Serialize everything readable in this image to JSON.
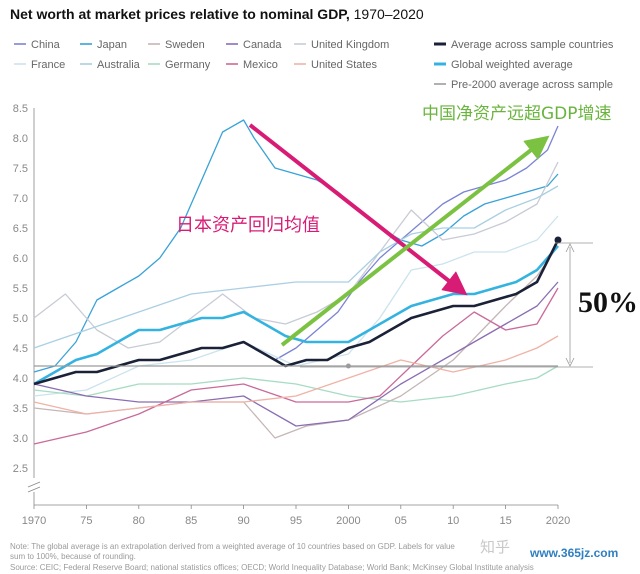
{
  "title": {
    "main": "Net worth at market prices relative to nominal GDP,",
    "years": "1970–2020"
  },
  "annotations": {
    "japan_reversion": "日本资产回归均值",
    "china_growth": "中国净资产远超GDP增速",
    "increase": "50%"
  },
  "notes": {
    "note_line1": "Note: The global average is an extrapolation derived from a weighted average of 10 countries based on GDP. Labels for value",
    "note_line2": "sum to 100%, because of rounding.",
    "source": "Source: CEIC; Federal Reserve Board; national statistics offices; OECD; World Inequality Database; World Bank; McKinsey Global Institute analysis"
  },
  "watermark": {
    "zhihu": "知乎",
    "site": "www.365jz.com"
  },
  "colors": {
    "china": "#7b83d4",
    "japan": "#39a2d8",
    "sweden": "#c6b6b6",
    "canada": "#8a6db2",
    "uk": "#c7cbd5",
    "france": "#cbe3ee",
    "australia": "#aacfe3",
    "germany": "#a6dcc3",
    "mexico": "#c96a9a",
    "us": "#f0b2a6",
    "average": "#1b2238",
    "global": "#34b3e0",
    "pre2000": "#9c9c9c",
    "arrow_pink": "#d81b75",
    "arrow_green": "#7cc242",
    "text_pink": "#d81b75",
    "text_green": "#6ab43e"
  },
  "chart_data": {
    "type": "line",
    "x_range": [
      1970,
      2020
    ],
    "ylim": [
      2.5,
      8.5
    ],
    "y_ticks": [
      "2.5",
      "3.0",
      "3.5",
      "4.0",
      "4.5",
      "5.0",
      "5.5",
      "6.0",
      "6.5",
      "7.0",
      "7.5",
      "8.0",
      "8.5"
    ],
    "y_tick_values": [
      2.5,
      3.0,
      3.5,
      4.0,
      4.5,
      5.0,
      5.5,
      6.0,
      6.5,
      7.0,
      7.5,
      8.0,
      8.5
    ],
    "x_tick_labels": [
      "1970",
      "75",
      "80",
      "85",
      "90",
      "95",
      "2000",
      "05",
      "10",
      "15",
      "2020"
    ],
    "x_tick_values": [
      1970,
      1975,
      1980,
      1985,
      1990,
      1995,
      2000,
      2005,
      2010,
      2015,
      2020
    ],
    "grid": false,
    "legend_position": "top",
    "legend": [
      {
        "key": "china",
        "label": "China"
      },
      {
        "key": "japan",
        "label": "Japan"
      },
      {
        "key": "sweden",
        "label": "Sweden"
      },
      {
        "key": "canada",
        "label": "Canada"
      },
      {
        "key": "uk",
        "label": "United Kingdom"
      },
      {
        "key": "average",
        "label": "Average across sample countries"
      },
      {
        "key": "france",
        "label": "France"
      },
      {
        "key": "australia",
        "label": "Australia"
      },
      {
        "key": "germany",
        "label": "Germany"
      },
      {
        "key": "mexico",
        "label": "Mexico"
      },
      {
        "key": "us",
        "label": "United States"
      },
      {
        "key": "global",
        "label": "Global weighted average"
      },
      {
        "key": "pre2000",
        "label": "Pre-2000 average across sample"
      }
    ],
    "series": [
      {
        "key": "china",
        "name": "China",
        "x": [
          1993,
          1995,
          1997,
          1999,
          2001,
          2003,
          2005,
          2007,
          2009,
          2011,
          2013,
          2015,
          2017,
          2019,
          2020
        ],
        "y": [
          4.3,
          4.5,
          4.8,
          5.1,
          5.6,
          6.0,
          6.3,
          6.6,
          6.9,
          7.1,
          7.2,
          7.3,
          7.5,
          7.8,
          8.2
        ]
      },
      {
        "key": "japan",
        "name": "Japan",
        "x": [
          1970,
          1972,
          1974,
          1976,
          1978,
          1980,
          1982,
          1984,
          1986,
          1988,
          1990,
          1991,
          1993,
          1995,
          1997,
          1999,
          2001,
          2003,
          2005,
          2007,
          2009,
          2011,
          2013,
          2015,
          2017,
          2019,
          2020
        ],
        "y": [
          4.1,
          4.2,
          4.6,
          5.3,
          5.5,
          5.7,
          6.0,
          6.5,
          7.3,
          8.1,
          8.3,
          8.0,
          7.5,
          7.4,
          7.3,
          7.1,
          6.8,
          6.5,
          6.3,
          6.2,
          6.4,
          6.7,
          6.9,
          7.0,
          7.1,
          7.2,
          7.4
        ]
      },
      {
        "key": "uk",
        "name": "United Kingdom",
        "x": [
          1970,
          1973,
          1976,
          1979,
          1982,
          1985,
          1988,
          1991,
          1994,
          1997,
          2000,
          2003,
          2006,
          2009,
          2012,
          2015,
          2018,
          2020
        ],
        "y": [
          5.0,
          5.4,
          4.8,
          4.5,
          4.6,
          5.0,
          5.4,
          5.0,
          4.9,
          5.1,
          5.4,
          6.1,
          6.8,
          6.3,
          6.4,
          6.6,
          6.9,
          7.6
        ]
      },
      {
        "key": "france",
        "name": "France",
        "x": [
          1970,
          1975,
          1980,
          1985,
          1990,
          1995,
          2000,
          2003,
          2006,
          2009,
          2012,
          2015,
          2018,
          2020
        ],
        "y": [
          3.7,
          3.8,
          4.2,
          4.3,
          4.6,
          4.2,
          4.4,
          5.0,
          5.8,
          5.9,
          6.1,
          6.1,
          6.3,
          6.7
        ]
      },
      {
        "key": "australia",
        "name": "Australia",
        "x": [
          1970,
          1975,
          1980,
          1985,
          1990,
          1995,
          2000,
          2003,
          2006,
          2009,
          2012,
          2015,
          2018,
          2020
        ],
        "y": [
          4.5,
          4.8,
          5.1,
          5.4,
          5.5,
          5.6,
          5.6,
          6.1,
          6.4,
          6.5,
          6.5,
          6.8,
          7.0,
          7.2
        ]
      },
      {
        "key": "germany",
        "name": "Germany",
        "x": [
          1970,
          1975,
          1980,
          1985,
          1990,
          1995,
          2000,
          2005,
          2010,
          2015,
          2018,
          2020
        ],
        "y": [
          3.8,
          3.7,
          3.9,
          3.9,
          4.0,
          3.9,
          3.7,
          3.6,
          3.7,
          3.9,
          4.0,
          4.2
        ]
      },
      {
        "key": "sweden",
        "name": "Sweden",
        "x": [
          1970,
          1975,
          1980,
          1985,
          1990,
          1993,
          1996,
          2000,
          2005,
          2010,
          2015,
          2018,
          2020
        ],
        "y": [
          3.5,
          3.4,
          3.5,
          3.6,
          3.6,
          3.0,
          3.2,
          3.3,
          3.7,
          4.3,
          5.2,
          5.7,
          6.2
        ]
      },
      {
        "key": "canada",
        "name": "Canada",
        "x": [
          1970,
          1975,
          1980,
          1985,
          1990,
          1995,
          2000,
          2005,
          2010,
          2015,
          2018,
          2020
        ],
        "y": [
          3.9,
          3.7,
          3.6,
          3.6,
          3.7,
          3.2,
          3.3,
          3.9,
          4.4,
          4.9,
          5.2,
          5.6
        ]
      },
      {
        "key": "mexico",
        "name": "Mexico",
        "x": [
          1970,
          1975,
          1980,
          1985,
          1990,
          1995,
          2000,
          2003,
          2006,
          2009,
          2012,
          2015,
          2018,
          2020
        ],
        "y": [
          2.9,
          3.1,
          3.4,
          3.8,
          3.9,
          3.6,
          3.6,
          3.7,
          4.2,
          4.7,
          5.1,
          4.8,
          4.9,
          5.5
        ]
      },
      {
        "key": "us",
        "name": "United States",
        "x": [
          1970,
          1975,
          1980,
          1985,
          1990,
          1995,
          2000,
          2005,
          2010,
          2015,
          2018,
          2020
        ],
        "y": [
          3.6,
          3.4,
          3.5,
          3.6,
          3.6,
          3.7,
          4.0,
          4.3,
          4.1,
          4.3,
          4.5,
          4.7
        ]
      },
      {
        "key": "global",
        "name": "Global weighted average",
        "x": [
          1970,
          1972,
          1974,
          1976,
          1978,
          1980,
          1982,
          1984,
          1986,
          1988,
          1990,
          1992,
          1994,
          1996,
          1998,
          2000,
          2002,
          2004,
          2006,
          2008,
          2010,
          2012,
          2014,
          2016,
          2018,
          2020
        ],
        "y": [
          3.9,
          4.1,
          4.3,
          4.4,
          4.6,
          4.8,
          4.8,
          4.9,
          5.0,
          5.0,
          5.1,
          4.9,
          4.7,
          4.6,
          4.6,
          4.6,
          4.8,
          5.0,
          5.2,
          5.3,
          5.4,
          5.4,
          5.5,
          5.6,
          5.8,
          6.2
        ]
      },
      {
        "key": "average",
        "name": "Average across sample countries",
        "x": [
          1970,
          1972,
          1974,
          1976,
          1978,
          1980,
          1982,
          1984,
          1986,
          1988,
          1990,
          1992,
          1994,
          1996,
          1998,
          2000,
          2002,
          2004,
          2006,
          2008,
          2010,
          2012,
          2014,
          2016,
          2018,
          2020
        ],
        "y": [
          3.9,
          4.0,
          4.1,
          4.1,
          4.2,
          4.3,
          4.3,
          4.4,
          4.5,
          4.5,
          4.6,
          4.4,
          4.2,
          4.3,
          4.3,
          4.5,
          4.6,
          4.8,
          5.0,
          5.1,
          5.2,
          5.2,
          5.3,
          5.4,
          5.6,
          6.3
        ]
      },
      {
        "key": "pre2000",
        "name": "Pre-2000 average across sample",
        "x": [
          1970,
          2020
        ],
        "y": [
          4.2,
          4.2
        ]
      }
    ]
  }
}
